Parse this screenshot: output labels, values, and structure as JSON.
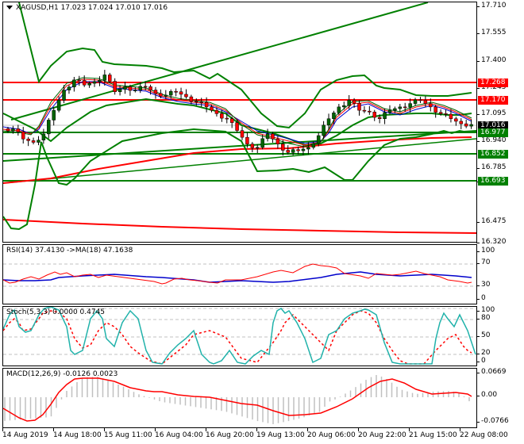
{
  "header": {
    "symbol": "XAGUSD,H1",
    "open": "17.023",
    "high": "17.024",
    "low": "17.010",
    "close": "17.016"
  },
  "panes": {
    "main": {
      "title": "XAGUSD,H1  17.023 17.024 17.010 17.016",
      "price_ticks": [
        "17.710",
        "17.555",
        "17.400",
        "17.245",
        "17.095",
        "16.940",
        "16.785",
        "16.630",
        "16.475",
        "16.320"
      ],
      "tags": [
        {
          "label": "17.268",
          "color": "#ff0000"
        },
        {
          "label": "17.170",
          "color": "#ff0000"
        },
        {
          "label": "17.016",
          "color": "#000000"
        },
        {
          "label": "16.977",
          "color": "#008000"
        },
        {
          "label": "16.852",
          "color": "#008000"
        },
        {
          "label": "16.693",
          "color": "#008000"
        }
      ]
    },
    "rsi": {
      "title": "RSI(14) 37.4130  ->MA(18) 47.1638",
      "ticks": [
        "100",
        "70",
        "30",
        "0"
      ]
    },
    "stoch": {
      "title": "Stoch(5,3,3) 0.0000 0.4745",
      "ticks": [
        "100",
        "80",
        "50",
        "20",
        "0"
      ]
    },
    "macd": {
      "title": "MACD(12,26,9) -0.0126 0.0023",
      "ticks": [
        "0.0669",
        "0.00",
        "-0.0766"
      ]
    }
  },
  "time_axis": [
    "14 Aug 2019",
    "14 Aug 18:00",
    "15 Aug 11:00",
    "16 Aug 04:00",
    "16 Aug 20:00",
    "19 Aug 13:00",
    "20 Aug 06:00",
    "20 Aug 22:00",
    "21 Aug 15:00",
    "22 Aug 08:00"
  ],
  "colors": {
    "support": "#008000",
    "resistance": "#ff0000",
    "bullish_candle": "#006400",
    "bearish_candle": "#ff0000",
    "rsi_line": "#ff0000",
    "rsi_ma": "#0000cc",
    "stoch_main": "#20b2aa",
    "stoch_signal": "#ff0000",
    "macd_hist": "#c0c0c0",
    "macd_signal": "#ff0000"
  },
  "chart_data": [
    {
      "type": "candlestick",
      "title": "XAGUSD,H1",
      "ohlc_last": {
        "open": 17.023,
        "high": 17.024,
        "low": 17.01,
        "close": 17.016
      },
      "ylim": [
        16.32,
        17.74
      ],
      "x_ticks": [
        "14 Aug 2019",
        "14 Aug 18:00",
        "15 Aug 11:00",
        "16 Aug 04:00",
        "16 Aug 20:00",
        "19 Aug 13:00",
        "20 Aug 06:00",
        "20 Aug 22:00",
        "21 Aug 15:00",
        "22 Aug 08:00"
      ],
      "close_series_approx": [
        16.99,
        16.93,
        16.91,
        16.96,
        17.1,
        17.22,
        17.28,
        17.25,
        17.27,
        17.31,
        17.21,
        17.24,
        17.22,
        17.24,
        17.2,
        17.19,
        17.21,
        17.18,
        17.15,
        17.12,
        17.08,
        17.05,
        16.98,
        16.9,
        16.88,
        16.96,
        16.9,
        16.85,
        16.86,
        16.88,
        16.95,
        17.05,
        17.12,
        17.16,
        17.1,
        17.09,
        17.05,
        17.1,
        17.12,
        17.14,
        17.16,
        17.12,
        17.08,
        17.05,
        17.02,
        17.016
      ],
      "horizontal_levels": [
        {
          "value": 17.268,
          "color": "red",
          "role": "resistance"
        },
        {
          "value": 17.17,
          "color": "red",
          "role": "resistance"
        },
        {
          "value": 16.977,
          "color": "green",
          "role": "support"
        },
        {
          "value": 16.852,
          "color": "green",
          "role": "support"
        },
        {
          "value": 16.693,
          "color": "green",
          "role": "support"
        }
      ],
      "overlays": [
        "Bollinger Bands (green)",
        "Moving averages (red, blue, green)",
        "Trend lines (green)",
        "200 MA (red)"
      ]
    },
    {
      "type": "line",
      "title": "RSI(14) 37.4130 ->MA(18) 47.1638",
      "ylim": [
        0,
        100
      ],
      "levels": [
        70,
        30
      ],
      "series": [
        {
          "name": "RSI(14)",
          "last": 37.413
        },
        {
          "name": "MA(18)",
          "last": 47.1638
        }
      ]
    },
    {
      "type": "line",
      "title": "Stoch(5,3,3) 0.0000 0.4745",
      "ylim": [
        0,
        100
      ],
      "levels": [
        80,
        50,
        20
      ],
      "series": [
        {
          "name": "%K",
          "last": 0.0
        },
        {
          "name": "%D",
          "last": 0.4745
        }
      ]
    },
    {
      "type": "bar",
      "title": "MACD(12,26,9) -0.0126 0.0023",
      "ylim": [
        -0.0766,
        0.0669
      ],
      "series": [
        {
          "name": "MACD histogram",
          "last": -0.0126
        },
        {
          "name": "Signal",
          "last": 0.0023
        }
      ]
    }
  ]
}
